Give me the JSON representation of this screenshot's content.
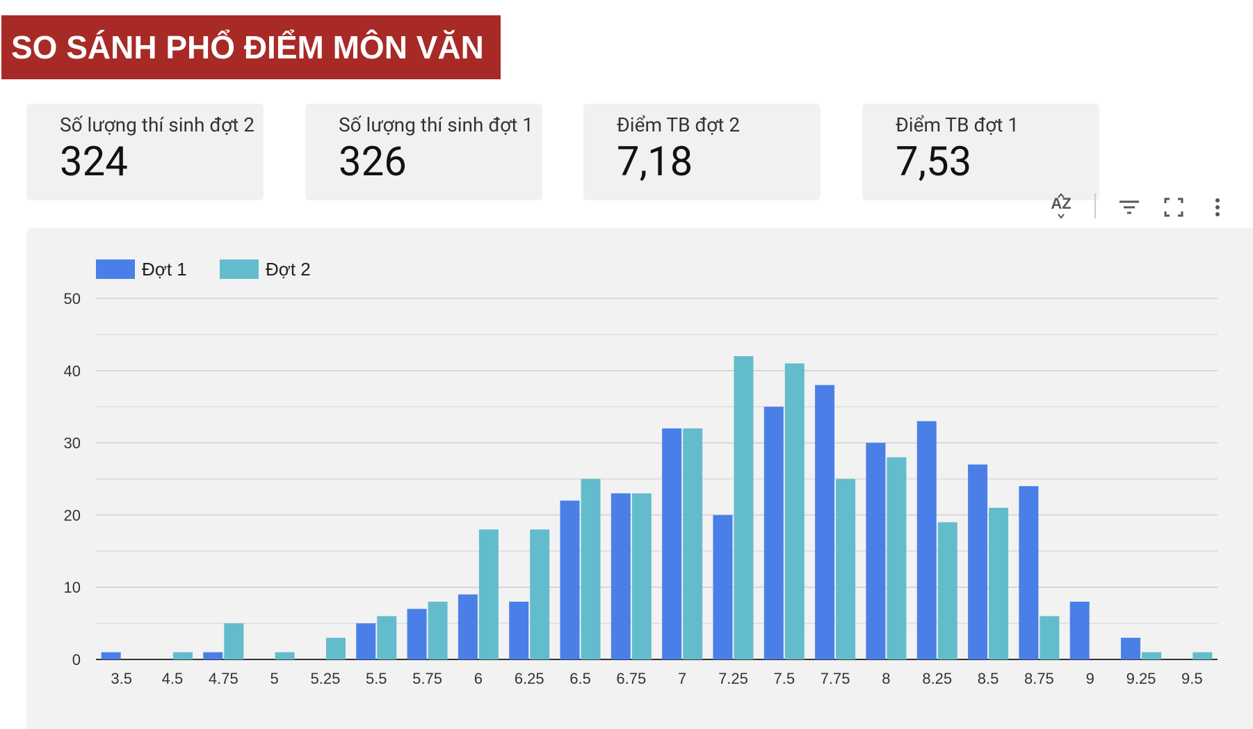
{
  "header": {
    "title": "SO SÁNH PHỔ ĐIỂM MÔN VĂN"
  },
  "cards": [
    {
      "label": "Số lượng thí sinh đợt 2",
      "value": "324"
    },
    {
      "label": "Số lượng thí sinh đợt 1",
      "value": "326"
    },
    {
      "label": "Điểm TB đợt 2",
      "value": "7,18"
    },
    {
      "label": "Điểm TB đợt 1",
      "value": "7,53"
    }
  ],
  "chart_data": {
    "type": "bar",
    "categories": [
      "3.5",
      "4.5",
      "4.75",
      "5",
      "5.25",
      "5.5",
      "5.75",
      "6",
      "6.25",
      "6.5",
      "6.75",
      "7",
      "7.25",
      "7.5",
      "7.75",
      "8",
      "8.25",
      "8.5",
      "8.75",
      "9",
      "9.25",
      "9.5"
    ],
    "series": [
      {
        "name": "Đợt 1",
        "color": "#4a7fe8",
        "values": [
          1,
          0,
          1,
          0,
          0,
          5,
          7,
          9,
          8,
          22,
          23,
          32,
          20,
          35,
          38,
          30,
          33,
          27,
          24,
          8,
          3,
          0
        ]
      },
      {
        "name": "Đợt 2",
        "color": "#63bccc",
        "values": [
          0,
          1,
          5,
          1,
          3,
          6,
          8,
          18,
          18,
          25,
          23,
          32,
          42,
          41,
          25,
          28,
          19,
          21,
          6,
          0,
          1,
          1
        ]
      }
    ],
    "ylim": [
      0,
      50
    ],
    "yticks": [
      0,
      10,
      20,
      30,
      40,
      50
    ],
    "y_minor_ticks": [
      5,
      15,
      25,
      35,
      45
    ],
    "grid": true,
    "legend": "top-left"
  }
}
